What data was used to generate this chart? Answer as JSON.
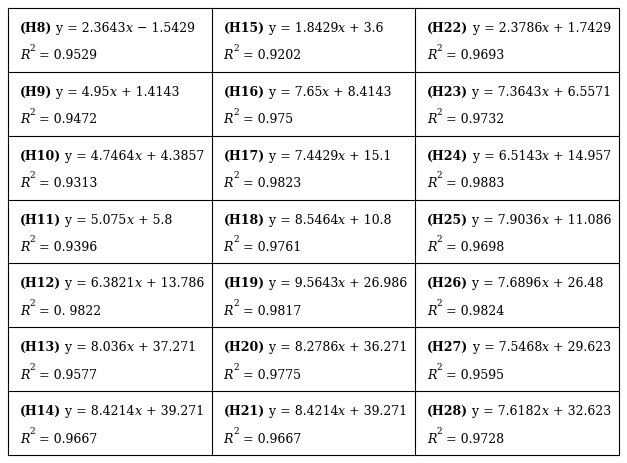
{
  "rows": [
    [
      [
        "(H8) y = 2.3643χ − 1.5429",
        "R² = 0.9529"
      ],
      [
        "(H15) y = 1.8429χ + 3.6",
        "R² = 0.9202"
      ],
      [
        "(H22) y = 2.3786χ + 1.7429",
        "R² = 0.9693"
      ]
    ],
    [
      [
        "(H9) y = 4.95χ + 1.4143",
        "R² = 0.9472"
      ],
      [
        "(H16) y = 7.65χ + 8.4143",
        "R² = 0.975"
      ],
      [
        "(H23) y = 7.3643χ + 6.5571",
        "R² = 0.9732"
      ]
    ],
    [
      [
        "(H10) y = 4.7464χ + 4.3857",
        "R² = 0.9313"
      ],
      [
        "(H17) y = 7.4429χ + 15.1",
        "R² = 0.9823"
      ],
      [
        "(H24) y = 6.5143χ + 14.957",
        "R² = 0.9883"
      ]
    ],
    [
      [
        "(H11) y = 5.075χ + 5.8",
        "R² = 0.9396"
      ],
      [
        "(H18) y = 8.5464χ + 10.8",
        "R² = 0.9761"
      ],
      [
        "(H25) y = 7.9036χ + 11.086",
        "R² = 0.9698"
      ]
    ],
    [
      [
        "(H12) y = 6.3821χ + 13.786",
        "R² = 0. 9822"
      ],
      [
        "(H19) y = 9.5643χ + 26.986",
        "R² = 0.9817"
      ],
      [
        "(H26) y = 7.6896χ + 26.48",
        "R² = 0.9824"
      ]
    ],
    [
      [
        "(H13) y = 8.036χ + 37.271",
        "R² = 0.9577"
      ],
      [
        "(H20) y = 8.2786χ + 36.271",
        "R² = 0.9775"
      ],
      [
        "(H27) y = 7.5468χ + 29.623",
        "R² = 0.9595"
      ]
    ],
    [
      [
        "(H14) y = 8.4214χ + 39.271",
        "R² = 0.9667"
      ],
      [
        "(H21) y = 8.4214χ + 39.271",
        "R² = 0.9667"
      ],
      [
        "(H28) y = 7.6182χ + 32.623",
        "R² = 0.9728"
      ]
    ]
  ],
  "cell_data": [
    [
      {
        "bold": "H8",
        "eq": " y = 2.3643x − 1.5429",
        "r2": "0.9529"
      },
      {
        "bold": "H15",
        "eq": " y = 1.8429x + 3.6",
        "r2": "0.9202"
      },
      {
        "bold": "H22",
        "eq": " y = 2.3786x + 1.7429",
        "r2": "0.9693"
      }
    ],
    [
      {
        "bold": "H9",
        "eq": " y = 4.95x + 1.4143",
        "r2": "0.9472"
      },
      {
        "bold": "H16",
        "eq": " y = 7.65x + 8.4143",
        "r2": "0.975"
      },
      {
        "bold": "H23",
        "eq": " y = 7.3643x + 6.5571",
        "r2": "0.9732"
      }
    ],
    [
      {
        "bold": "H10",
        "eq": " y = 4.7464x + 4.3857",
        "r2": "0.9313"
      },
      {
        "bold": "H17",
        "eq": " y = 7.4429x + 15.1",
        "r2": "0.9823"
      },
      {
        "bold": "H24",
        "eq": " y = 6.5143x + 14.957",
        "r2": "0.9883"
      }
    ],
    [
      {
        "bold": "H11",
        "eq": " y = 5.075x + 5.8",
        "r2": "0.9396"
      },
      {
        "bold": "H18",
        "eq": " y = 8.5464x + 10.8",
        "r2": "0.9761"
      },
      {
        "bold": "H25",
        "eq": " y = 7.9036x + 11.086",
        "r2": "0.9698"
      }
    ],
    [
      {
        "bold": "H12",
        "eq": " y = 6.3821x + 13.786",
        "r2": "0. 9822"
      },
      {
        "bold": "H19",
        "eq": " y = 9.5643x + 26.986",
        "r2": "0.9817"
      },
      {
        "bold": "H26",
        "eq": " y = 7.6896x + 26.48",
        "r2": "0.9824"
      }
    ],
    [
      {
        "bold": "H13",
        "eq": " y = 8.036x + 37.271",
        "r2": "0.9577"
      },
      {
        "bold": "H20",
        "eq": " y = 8.2786x + 36.271",
        "r2": "0.9775"
      },
      {
        "bold": "H27",
        "eq": " y = 7.5468x + 29.623",
        "r2": "0.9595"
      }
    ],
    [
      {
        "bold": "H14",
        "eq": " y = 8.4214x + 39.271",
        "r2": "0.9667"
      },
      {
        "bold": "H21",
        "eq": " y = 8.4214x + 39.271",
        "r2": "0.9667"
      },
      {
        "bold": "H28",
        "eq": " y = 7.6182x + 32.623",
        "r2": "0.9728"
      }
    ]
  ],
  "font_size": 9.0,
  "font_family": "DejaVu Serif",
  "bg_color": "#ffffff",
  "n_rows": 7,
  "n_cols": 3
}
